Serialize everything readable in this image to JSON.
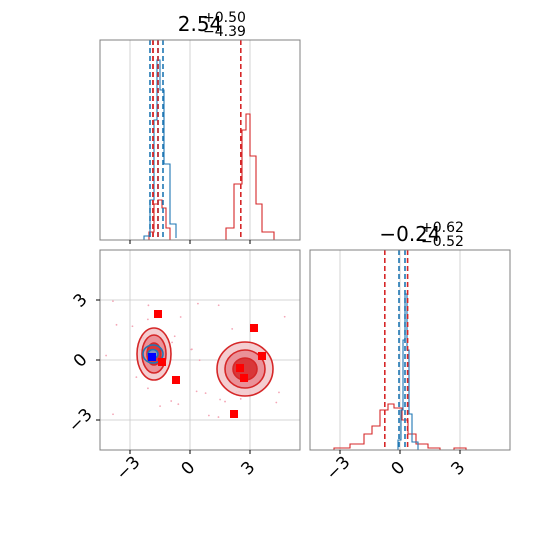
{
  "colors": {
    "red": "#d62728",
    "blue": "#1f77b4",
    "marker_red": "#ff0000",
    "marker_blue": "#0000ff",
    "grid": "#c8c8c8"
  },
  "chart_data": {
    "type": "scatter",
    "titles": [
      {
        "value": "2.54",
        "sup": "+0.50",
        "sub": "−4.39"
      },
      {
        "value": "−0.24",
        "sup": "+0.62",
        "sub": "−0.52"
      }
    ],
    "axes": {
      "x_range": [
        -4.5,
        5.5
      ],
      "y_range": [
        -4.5,
        5.5
      ],
      "ticks": [
        -3,
        0,
        3
      ],
      "tick_labels": [
        "−3",
        "0",
        "3"
      ],
      "grid": true
    },
    "marginal_x": {
      "red_hist": [
        [
          -2.05,
          0.04
        ],
        [
          -1.8,
          0.18
        ],
        [
          -1.6,
          0.2
        ],
        [
          -1.4,
          0.16
        ],
        [
          -1.2,
          0.06
        ],
        [
          -1.0,
          0.0
        ],
        [
          1.6,
          0.0
        ],
        [
          1.8,
          0.06
        ],
        [
          2.2,
          0.28
        ],
        [
          2.6,
          0.55
        ],
        [
          2.8,
          0.63
        ],
        [
          3.0,
          0.42
        ],
        [
          3.3,
          0.18
        ],
        [
          3.6,
          0.04
        ],
        [
          4.2,
          0.0
        ]
      ],
      "blue_hist": [
        [
          -2.3,
          0.02
        ],
        [
          -2.0,
          0.2
        ],
        [
          -1.8,
          0.6
        ],
        [
          -1.65,
          0.9
        ],
        [
          -1.5,
          0.75
        ],
        [
          -1.3,
          0.38
        ],
        [
          -1.0,
          0.08
        ],
        [
          -0.7,
          0.01
        ]
      ],
      "red_quantiles": [
        -1.85,
        -1.85,
        2.54
      ],
      "blue_quantiles": [
        -2.0,
        -1.6,
        -1.35
      ],
      "red_truth": -1.6
    },
    "marginal_y": {
      "red_hist": [
        [
          -4.5,
          0.0
        ],
        [
          -3.3,
          0.01
        ],
        [
          -2.5,
          0.03
        ],
        [
          -1.8,
          0.08
        ],
        [
          -1.4,
          0.12
        ],
        [
          -1.0,
          0.2
        ],
        [
          -0.6,
          0.23
        ],
        [
          -0.3,
          0.21
        ],
        [
          0.1,
          0.15
        ],
        [
          0.4,
          0.08
        ],
        [
          0.8,
          0.03
        ],
        [
          1.4,
          0.01
        ],
        [
          2.0,
          0.0
        ],
        [
          2.7,
          0.01
        ],
        [
          3.3,
          0.0
        ]
      ],
      "blue_hist": [
        [
          -0.5,
          0.0
        ],
        [
          -0.1,
          0.05
        ],
        [
          0.05,
          0.2
        ],
        [
          0.15,
          0.55
        ],
        [
          0.25,
          0.78
        ],
        [
          0.35,
          0.5
        ],
        [
          0.45,
          0.18
        ],
        [
          0.6,
          0.04
        ],
        [
          0.9,
          0.0
        ]
      ],
      "red_quantiles": [
        -0.76,
        0.38
      ],
      "blue_quantiles": [
        -0.05,
        0.25
      ],
      "red_truth": 0.38
    },
    "joint": {
      "red_blobs": [
        {
          "cx": -1.8,
          "cy": 0.3,
          "rx": [
            0.85,
            0.6,
            0.35
          ],
          "ry": [
            1.3,
            0.95,
            0.55
          ]
        },
        {
          "cx": 2.75,
          "cy": -0.45,
          "rx": [
            1.4,
            1.0,
            0.6
          ],
          "ry": [
            1.35,
            0.95,
            0.55
          ]
        }
      ],
      "blue_blob": {
        "cx": -1.85,
        "cy": 0.3,
        "rx": [
          0.5,
          0.25
        ],
        "ry": [
          0.45,
          0.22
        ]
      },
      "red_squares": [
        [
          -1.6,
          2.3
        ],
        [
          -0.7,
          -1.0
        ],
        [
          -1.4,
          -0.1
        ],
        [
          2.5,
          -0.4
        ],
        [
          2.7,
          -0.9
        ],
        [
          2.2,
          -2.7
        ],
        [
          3.2,
          1.6
        ],
        [
          3.6,
          0.2
        ]
      ],
      "blue_squares": [
        [
          -1.9,
          0.15
        ]
      ]
    }
  }
}
